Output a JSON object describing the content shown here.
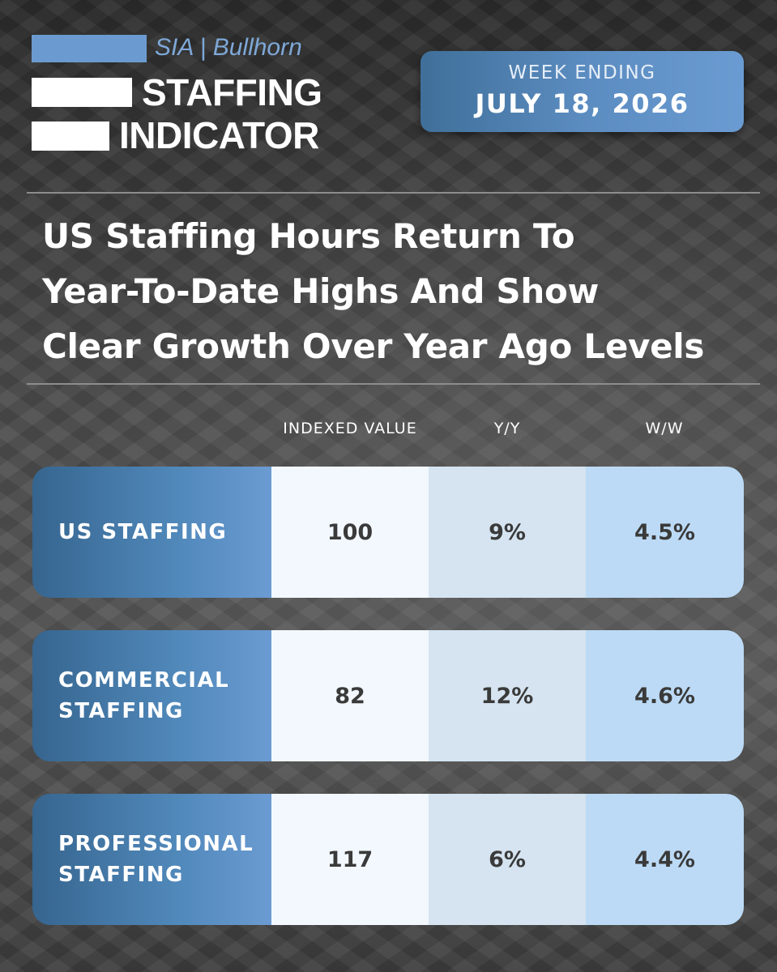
{
  "logo": {
    "brand": "SIA | Bullhorn",
    "line1": "STAFFING",
    "line2": "INDICATOR"
  },
  "badge": {
    "label": "WEEK ENDING",
    "date": "JULY 18, 2026"
  },
  "headline": {
    "lines": [
      "US Staffing Hours Return To",
      "Year-To-Date Highs And Show",
      "Clear Growth Over Year Ago Levels"
    ]
  },
  "table": {
    "columns": [
      "INDEXED VALUE",
      "Y/Y",
      "W/W"
    ],
    "rows": [
      {
        "label": "US STAFFING",
        "indexed": "100",
        "yy": "9%",
        "ww": "4.5%"
      },
      {
        "label": "COMMERCIAL\nSTAFFING",
        "indexed": "82",
        "yy": "12%",
        "ww": "4.6%"
      },
      {
        "label": "PROFESSIONAL\nSTAFFING",
        "indexed": "117",
        "yy": "6%",
        "ww": "4.4%"
      }
    ]
  },
  "colors": {
    "accent_blue": "#6b9ad0",
    "label_gradient_dark": "#36658f",
    "indexed_cell": "#f2f8fd",
    "yy_cell": "#d5e4f0",
    "ww_cell": "#bcdaf5"
  }
}
